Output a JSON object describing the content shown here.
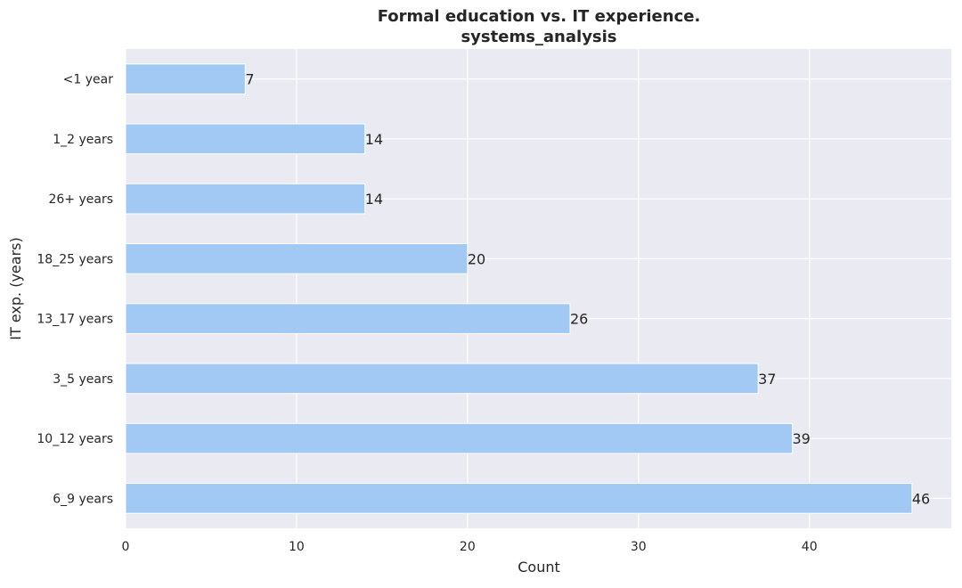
{
  "chart_data": {
    "type": "bar",
    "orientation": "horizontal",
    "title": "Formal education vs. IT experience.",
    "subtitle": "systems_analysis",
    "xlabel": "Count",
    "ylabel": "IT exp. (years)",
    "categories": [
      "<1 year",
      "1_2 years",
      "26+ years",
      "18_25 years",
      "13_17 years",
      "3_5 years",
      "10_12 years",
      "6_9 years"
    ],
    "values": [
      7,
      14,
      14,
      20,
      26,
      37,
      39,
      46
    ],
    "xticks": [
      0,
      10,
      20,
      30,
      40
    ],
    "xlim": [
      0,
      48.3
    ],
    "grid": true,
    "colors": {
      "bar": "#a1c9f4",
      "background": "#eaeaf2",
      "grid": "#ffffff",
      "text": "#262626"
    }
  }
}
